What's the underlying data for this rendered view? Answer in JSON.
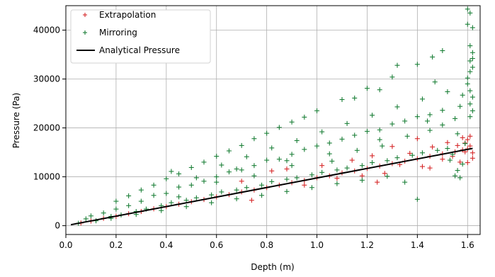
{
  "chart_data": {
    "type": "scatter",
    "xlabel": "Depth (m)",
    "ylabel": "Pressure (Pa)",
    "xlim": [
      0.0,
      1.65
    ],
    "ylim": [
      -1800,
      45000
    ],
    "xticks": [
      "0.0",
      "0.2",
      "0.4",
      "0.6",
      "0.8",
      "1.0",
      "1.2",
      "1.4",
      "1.6"
    ],
    "yticks": [
      "0",
      "10000",
      "20000",
      "30000",
      "40000"
    ],
    "grid": true,
    "legend_position": "top-left",
    "series": [
      {
        "name": "Extrapolation",
        "marker": "plus",
        "color": "#d62728",
        "points": [
          [
            0.06,
            550
          ],
          [
            0.1,
            950
          ],
          [
            0.15,
            1500
          ],
          [
            0.2,
            1900
          ],
          [
            0.25,
            2450
          ],
          [
            0.3,
            2900
          ],
          [
            0.35,
            3450
          ],
          [
            0.4,
            3900
          ],
          [
            0.45,
            4400
          ],
          [
            0.5,
            4900
          ],
          [
            0.55,
            5350
          ],
          [
            0.6,
            5900
          ],
          [
            0.65,
            6350
          ],
          [
            0.7,
            6900
          ],
          [
            0.75,
            7300
          ],
          [
            0.8,
            7800
          ],
          [
            0.85,
            8300
          ],
          [
            0.9,
            8800
          ],
          [
            0.95,
            9250
          ],
          [
            1.0,
            9800
          ],
          [
            1.05,
            10200
          ],
          [
            1.1,
            10800
          ],
          [
            1.15,
            11200
          ],
          [
            1.2,
            11700
          ],
          [
            1.25,
            12200
          ],
          [
            1.3,
            12700
          ],
          [
            1.35,
            13200
          ],
          [
            1.4,
            13700
          ],
          [
            1.45,
            14200
          ],
          [
            1.5,
            14700
          ],
          [
            1.55,
            15100
          ],
          [
            1.58,
            15500
          ],
          [
            1.6,
            15700
          ],
          [
            1.61,
            16300
          ],
          [
            1.62,
            14900
          ],
          [
            1.6,
            17600
          ],
          [
            1.61,
            18300
          ],
          [
            1.62,
            13800
          ],
          [
            1.59,
            16900
          ],
          [
            1.6,
            12900
          ],
          [
            0.82,
            11200
          ],
          [
            0.88,
            11600
          ],
          [
            0.95,
            8300
          ],
          [
            1.02,
            12300
          ],
          [
            1.08,
            9700
          ],
          [
            1.14,
            13400
          ],
          [
            1.18,
            10200
          ],
          [
            1.22,
            14300
          ],
          [
            1.27,
            10700
          ],
          [
            1.33,
            12500
          ],
          [
            1.37,
            14800
          ],
          [
            1.42,
            12100
          ],
          [
            1.46,
            16100
          ],
          [
            1.5,
            13600
          ],
          [
            1.52,
            17000
          ],
          [
            1.54,
            14200
          ],
          [
            1.56,
            16400
          ],
          [
            1.57,
            13000
          ],
          [
            1.58,
            18000
          ],
          [
            1.59,
            15100
          ],
          [
            0.7,
            9100
          ],
          [
            0.74,
            5200
          ],
          [
            1.24,
            8900
          ],
          [
            1.3,
            16200
          ],
          [
            1.4,
            17800
          ],
          [
            1.45,
            11800
          ]
        ]
      },
      {
        "name": "Mirroring",
        "marker": "plus",
        "color": "#1a7f37",
        "points": [
          [
            0.05,
            500
          ],
          [
            0.08,
            1400
          ],
          [
            0.1,
            2000
          ],
          [
            0.12,
            1000
          ],
          [
            0.15,
            2600
          ],
          [
            0.18,
            1900
          ],
          [
            0.2,
            3400
          ],
          [
            0.22,
            2200
          ],
          [
            0.25,
            4100
          ],
          [
            0.28,
            2900
          ],
          [
            0.3,
            5000
          ],
          [
            0.32,
            3400
          ],
          [
            0.35,
            6200
          ],
          [
            0.38,
            4100
          ],
          [
            0.4,
            6600
          ],
          [
            0.42,
            4700
          ],
          [
            0.45,
            7900
          ],
          [
            0.48,
            5200
          ],
          [
            0.5,
            8300
          ],
          [
            0.52,
            5700
          ],
          [
            0.55,
            9100
          ],
          [
            0.58,
            6300
          ],
          [
            0.6,
            10000
          ],
          [
            0.62,
            6900
          ],
          [
            0.65,
            11000
          ],
          [
            0.68,
            7300
          ],
          [
            0.7,
            11400
          ],
          [
            0.72,
            7800
          ],
          [
            0.75,
            12300
          ],
          [
            0.78,
            8300
          ],
          [
            0.8,
            13400
          ],
          [
            0.82,
            9000
          ],
          [
            0.85,
            13600
          ],
          [
            0.88,
            9500
          ],
          [
            0.9,
            14600
          ],
          [
            0.92,
            9800
          ],
          [
            0.95,
            15600
          ],
          [
            0.98,
            10400
          ],
          [
            1.0,
            16300
          ],
          [
            1.02,
            10900
          ],
          [
            1.05,
            16900
          ],
          [
            1.08,
            11400
          ],
          [
            1.1,
            17700
          ],
          [
            1.12,
            11800
          ],
          [
            1.15,
            18500
          ],
          [
            1.18,
            12300
          ],
          [
            1.2,
            19300
          ],
          [
            1.22,
            12900
          ],
          [
            1.25,
            19600
          ],
          [
            1.28,
            13300
          ],
          [
            1.3,
            20800
          ],
          [
            1.32,
            13900
          ],
          [
            1.35,
            21400
          ],
          [
            1.38,
            14400
          ],
          [
            1.4,
            22300
          ],
          [
            1.42,
            14900
          ],
          [
            1.45,
            22700
          ],
          [
            1.48,
            15400
          ],
          [
            1.5,
            23600
          ],
          [
            1.52,
            15800
          ],
          [
            0.3,
            7300
          ],
          [
            0.4,
            9600
          ],
          [
            0.5,
            11900
          ],
          [
            0.6,
            14200
          ],
          [
            0.7,
            16400
          ],
          [
            0.8,
            18900
          ],
          [
            0.9,
            21200
          ],
          [
            1.0,
            23500
          ],
          [
            1.1,
            25800
          ],
          [
            1.2,
            28100
          ],
          [
            1.3,
            30400
          ],
          [
            1.4,
            33000
          ],
          [
            1.46,
            34500
          ],
          [
            1.5,
            35800
          ],
          [
            1.47,
            29400
          ],
          [
            1.32,
            32800
          ],
          [
            1.25,
            27800
          ],
          [
            1.15,
            26100
          ],
          [
            0.95,
            22200
          ],
          [
            0.85,
            20100
          ],
          [
            0.75,
            17800
          ],
          [
            0.65,
            15300
          ],
          [
            0.55,
            13000
          ],
          [
            0.45,
            10600
          ],
          [
            0.35,
            8300
          ],
          [
            0.25,
            6100
          ],
          [
            0.2,
            5000
          ],
          [
            0.42,
            11100
          ],
          [
            0.62,
            12400
          ],
          [
            0.72,
            14100
          ],
          [
            0.82,
            15900
          ],
          [
            0.92,
            17400
          ],
          [
            1.02,
            19200
          ],
          [
            1.12,
            20900
          ],
          [
            1.22,
            22600
          ],
          [
            1.32,
            24300
          ],
          [
            1.42,
            25900
          ],
          [
            1.52,
            27400
          ],
          [
            0.52,
            9800
          ],
          [
            0.68,
            11600
          ],
          [
            0.88,
            13300
          ],
          [
            1.05,
            14700
          ],
          [
            1.25,
            17600
          ],
          [
            1.45,
            19500
          ],
          [
            1.55,
            21900
          ],
          [
            1.56,
            18800
          ],
          [
            1.57,
            24400
          ],
          [
            1.58,
            26700
          ],
          [
            1.59,
            16800
          ],
          [
            1.6,
            30200
          ],
          [
            1.61,
            31500
          ],
          [
            1.62,
            32400
          ],
          [
            1.61,
            33700
          ],
          [
            1.62,
            35400
          ],
          [
            1.6,
            29000
          ],
          [
            1.61,
            27600
          ],
          [
            1.62,
            26300
          ],
          [
            1.61,
            24900
          ],
          [
            1.62,
            23500
          ],
          [
            1.61,
            22300
          ],
          [
            1.6,
            41200
          ],
          [
            1.61,
            43500
          ],
          [
            1.6,
            44300
          ],
          [
            1.62,
            40500
          ],
          [
            1.61,
            36800
          ],
          [
            1.62,
            34200
          ],
          [
            1.55,
            10200
          ],
          [
            1.56,
            11300
          ],
          [
            1.57,
            9800
          ],
          [
            1.58,
            12600
          ],
          [
            1.53,
            13400
          ],
          [
            1.54,
            14600
          ],
          [
            1.4,
            5400
          ],
          [
            1.35,
            8900
          ],
          [
            1.28,
            10100
          ],
          [
            1.18,
            9300
          ],
          [
            1.08,
            8600
          ],
          [
            0.98,
            7800
          ],
          [
            0.88,
            7000
          ],
          [
            0.78,
            6200
          ],
          [
            0.68,
            5500
          ],
          [
            0.58,
            4700
          ],
          [
            0.48,
            3900
          ],
          [
            0.38,
            3100
          ],
          [
            0.28,
            2300
          ],
          [
            0.18,
            1500
          ],
          [
            0.45,
            5900
          ],
          [
            0.6,
            8900
          ],
          [
            0.75,
            10200
          ],
          [
            0.9,
            12300
          ],
          [
            1.06,
            13200
          ],
          [
            1.16,
            15400
          ],
          [
            1.26,
            16300
          ],
          [
            1.36,
            18300
          ],
          [
            1.44,
            21400
          ],
          [
            1.5,
            20600
          ]
        ]
      },
      {
        "name": "Analytical Pressure",
        "marker": "line",
        "color": "#000000",
        "points": [
          [
            0.02,
            200
          ],
          [
            1.62,
            15800
          ]
        ]
      }
    ]
  }
}
